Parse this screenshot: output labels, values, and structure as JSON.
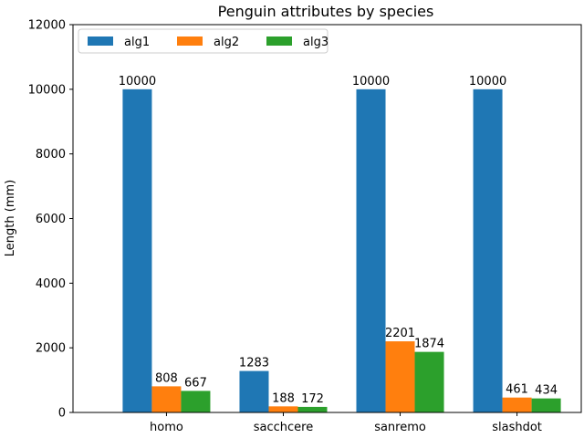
{
  "chart_data": {
    "type": "bar",
    "title": "Penguin attributes by species",
    "xlabel": "",
    "ylabel": "Length (mm)",
    "categories": [
      "homo",
      "sacchcere",
      "sanremo",
      "slashdot"
    ],
    "series": [
      {
        "name": "alg1",
        "values": [
          10000,
          1283,
          10000,
          10000
        ],
        "color": "#1f77b4"
      },
      {
        "name": "alg2",
        "values": [
          808,
          188,
          2201,
          461
        ],
        "color": "#ff7f0e"
      },
      {
        "name": "alg3",
        "values": [
          667,
          172,
          1874,
          434
        ],
        "color": "#2ca02c"
      }
    ],
    "ylim": [
      0,
      12000
    ],
    "yticks": [
      0,
      2000,
      4000,
      6000,
      8000,
      10000,
      12000
    ],
    "legend": {
      "placement": "top-left",
      "columns": 3
    },
    "grid": false
  }
}
